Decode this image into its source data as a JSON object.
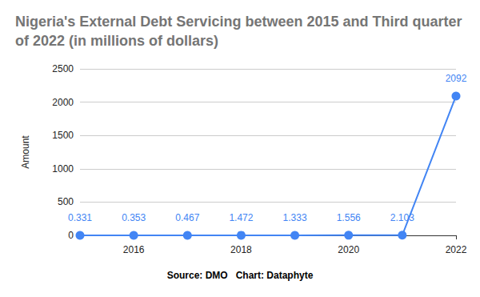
{
  "chart_data": {
    "type": "line",
    "title": "Nigeria's External Debt Servicing between 2015 and Third quarter of 2022 (in millions of dollars)",
    "ylabel": "Amount",
    "annotations": [
      "Source: DMO   Chart: Dataphyte"
    ],
    "x": [
      2015,
      2016,
      2017,
      2018,
      2019,
      2020,
      2021,
      2022
    ],
    "values": [
      0.331,
      0.353,
      0.467,
      1.472,
      1.333,
      1.556,
      2.103,
      2092
    ],
    "color": "#4285f4",
    "marker": "circle",
    "xlim": [
      2015,
      2022
    ],
    "xticks": [
      2016,
      2018,
      2020,
      2022
    ],
    "ylim": [
      0,
      2500
    ],
    "yticks": [
      0,
      500,
      1000,
      1500,
      2000,
      2500
    ],
    "grid": true,
    "data_labels": true
  }
}
